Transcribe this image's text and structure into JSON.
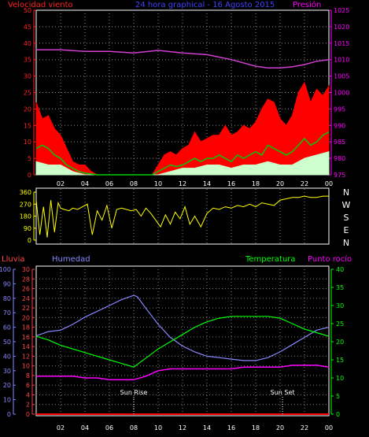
{
  "chart_data": [
    {
      "type": "line",
      "panel": "wind_pressure",
      "header_left": "Velocidad viento",
      "title": "24 hora graphical - 16 Agosto 2015",
      "header_right": "Presión",
      "x_ticks": [
        "02",
        "04",
        "06",
        "08",
        "10",
        "12",
        "14",
        "16",
        "18",
        "20",
        "22",
        "00"
      ],
      "x_range_hours": [
        0,
        24
      ],
      "y_left": {
        "ticks": [
          0,
          5,
          10,
          15,
          20,
          25,
          30,
          35,
          40,
          45,
          50
        ],
        "range": [
          0,
          50
        ]
      },
      "y_right": {
        "ticks": [
          975,
          980,
          985,
          990,
          995,
          1000,
          1005,
          1010,
          1015,
          1020,
          1025
        ],
        "range": [
          975,
          1025
        ]
      },
      "pressure": {
        "color": "#d040d0",
        "x": [
          0,
          2,
          4,
          6,
          8,
          10,
          12,
          14,
          16,
          18,
          19,
          20,
          21,
          22,
          23,
          24
        ],
        "y": [
          1013,
          1013,
          1012.5,
          1012.5,
          1012,
          1012.8,
          1012,
          1011.5,
          1010,
          1008,
          1007.5,
          1007.5,
          1007.8,
          1008.5,
          1009.5,
          1010
        ]
      },
      "series": [
        {
          "name": "gust",
          "color": "#ff0000",
          "x": [
            0,
            0.5,
            1,
            1.5,
            2,
            2.5,
            3,
            3.5,
            4,
            4.5,
            5,
            9.5,
            10,
            10.5,
            11,
            11.5,
            12,
            12.5,
            13,
            13.5,
            14,
            14.5,
            15,
            15.5,
            16,
            16.5,
            17,
            17.5,
            18,
            18.5,
            19,
            19.5,
            20,
            20.5,
            21,
            21.5,
            22,
            22.5,
            23,
            23.5,
            24
          ],
          "y": [
            22,
            17,
            18,
            14,
            12,
            8,
            4,
            3,
            3,
            1,
            0,
            0,
            3,
            6,
            7,
            6,
            8,
            9,
            13,
            10,
            11,
            12,
            12,
            15,
            12,
            13,
            15,
            14,
            16,
            20,
            23,
            22,
            17,
            15,
            18,
            25,
            28,
            22,
            26,
            24,
            27
          ]
        },
        {
          "name": "average",
          "color": "#00cc00",
          "x": [
            0,
            0.5,
            1,
            1.5,
            2,
            2.5,
            3,
            3.5,
            4,
            5,
            9.5,
            10,
            10.5,
            11,
            11.5,
            12,
            12.5,
            13,
            13.5,
            14,
            14.5,
            15,
            15.5,
            16,
            16.5,
            17,
            17.5,
            18,
            18.5,
            19,
            19.5,
            20,
            20.5,
            21,
            21.5,
            22,
            22.5,
            23,
            23.5,
            24
          ],
          "y": [
            8,
            9,
            8,
            6,
            5,
            3,
            2,
            1,
            0.5,
            0,
            0,
            1,
            2,
            3,
            2.5,
            3,
            4,
            5,
            4,
            5,
            5,
            6,
            5,
            4,
            6,
            5,
            6,
            7,
            6,
            9,
            8,
            7,
            6,
            7,
            9,
            11,
            9,
            10,
            12,
            13
          ]
        },
        {
          "name": "min",
          "color": "#ccffcc",
          "x": [
            0,
            1,
            2,
            3,
            4,
            5,
            9.5,
            10,
            11,
            12,
            13,
            14,
            15,
            16,
            17,
            18,
            19,
            20,
            21,
            22,
            23,
            24
          ],
          "y": [
            4,
            3,
            3,
            1,
            0,
            0,
            0,
            0,
            1,
            2,
            2,
            3,
            3,
            2,
            3,
            3,
            4,
            3,
            3,
            5,
            6,
            7
          ]
        }
      ]
    },
    {
      "type": "scatter",
      "panel": "wind_direction",
      "y_left": {
        "ticks": [
          360,
          270,
          180,
          90,
          0
        ],
        "range": [
          0,
          360
        ]
      },
      "y_right_labels": [
        "N",
        "W",
        "S",
        "E",
        "N"
      ],
      "color": "#ffff00",
      "x": [
        0,
        0.3,
        0.6,
        0.9,
        1.2,
        1.5,
        1.8,
        2,
        2.3,
        2.7,
        3,
        3.4,
        3.8,
        4.2,
        4.6,
        5,
        5.4,
        5.8,
        6.2,
        6.6,
        7,
        7.4,
        7.8,
        8.2,
        8.6,
        9,
        9.4,
        9.8,
        10.2,
        10.6,
        11,
        11.4,
        11.8,
        12.2,
        12.6,
        13,
        13.5,
        14,
        14.5,
        15,
        15.5,
        16,
        16.5,
        17,
        17.5,
        18,
        18.5,
        19,
        19.5,
        20,
        20.5,
        21,
        21.5,
        22,
        22.5,
        23,
        23.5,
        24
      ],
      "y": [
        300,
        40,
        250,
        20,
        300,
        60,
        280,
        240,
        230,
        220,
        240,
        230,
        250,
        270,
        40,
        220,
        150,
        260,
        90,
        230,
        240,
        230,
        220,
        230,
        180,
        240,
        200,
        150,
        100,
        190,
        120,
        210,
        160,
        250,
        120,
        180,
        100,
        200,
        240,
        230,
        250,
        240,
        260,
        250,
        270,
        250,
        280,
        270,
        260,
        300,
        310,
        320,
        320,
        330,
        320,
        320,
        330,
        330
      ]
    },
    {
      "type": "line",
      "panel": "temp_humidity",
      "x_ticks": [
        "02",
        "04",
        "06",
        "08",
        "10",
        "12",
        "14",
        "16",
        "18",
        "20",
        "22",
        "00"
      ],
      "annotations": [
        {
          "text": "Sun Rise",
          "hour": 8
        },
        {
          "text": "Sun Set",
          "hour": 20.2
        }
      ],
      "axis_rain": {
        "label": "Lluvia",
        "color": "#ff4444",
        "ticks": [
          0,
          2,
          4,
          6,
          8,
          10,
          12,
          14,
          16,
          18,
          20,
          22,
          24,
          26,
          28,
          30
        ],
        "range": [
          0,
          30
        ]
      },
      "axis_humidity": {
        "label": "Humedad",
        "color": "#8888ff",
        "ticks": [
          0,
          10,
          20,
          30,
          40,
          50,
          60,
          70,
          80,
          90,
          100
        ],
        "range": [
          0,
          100
        ]
      },
      "axis_temperature": {
        "label": "Temperatura",
        "color": "#00ff00",
        "ticks": [
          0,
          5,
          10,
          15,
          20,
          25,
          30,
          35,
          40
        ],
        "range": [
          0,
          40
        ]
      },
      "axis_dewpoint": {
        "label": "Punto rocío",
        "color": "#ff00ff"
      },
      "series": [
        {
          "name": "Humedad",
          "color": "#8888ff",
          "x": [
            0,
            1,
            2,
            3,
            4,
            5,
            6,
            7,
            8,
            8.3,
            9,
            10,
            11,
            12,
            13,
            14,
            15,
            16,
            17,
            18,
            19,
            20,
            21,
            22,
            23,
            24
          ],
          "y": [
            54,
            57,
            58,
            62,
            67,
            71,
            75,
            79,
            82,
            81,
            73,
            62,
            53,
            47,
            43,
            40,
            39,
            38,
            37,
            37,
            39,
            43,
            48,
            53,
            58,
            60
          ]
        },
        {
          "name": "Temperatura",
          "color": "#00ff00",
          "x": [
            0,
            1,
            2,
            3,
            4,
            5,
            6,
            7,
            8,
            9,
            10,
            11,
            12,
            13,
            14,
            15,
            16,
            17,
            18,
            19,
            20,
            21,
            22,
            23,
            24
          ],
          "y": [
            21.5,
            20.5,
            19,
            18,
            17,
            16,
            15,
            14,
            13,
            15.5,
            18,
            20,
            22,
            24,
            25.5,
            26.5,
            27,
            27,
            27,
            27,
            26.5,
            25,
            23.5,
            22.5,
            21.5
          ]
        },
        {
          "name": "Punto rocío",
          "color": "#ff00ff",
          "x": [
            0,
            1,
            2,
            3,
            4,
            5,
            6,
            7,
            8,
            9,
            10,
            11,
            12,
            13,
            14,
            15,
            16,
            17,
            18,
            19,
            20,
            21,
            22,
            23,
            24
          ],
          "y": [
            10.5,
            10.5,
            10.5,
            10.5,
            10,
            10,
            9.5,
            9.5,
            9.5,
            10.5,
            12,
            12.5,
            12.5,
            12.5,
            12.5,
            12.5,
            12.5,
            13,
            13,
            13,
            13,
            13.5,
            13.5,
            13.5,
            13
          ]
        },
        {
          "name": "Lluvia",
          "color": "#ff0000",
          "x": [
            0,
            24
          ],
          "y": [
            0,
            0
          ]
        }
      ]
    }
  ]
}
